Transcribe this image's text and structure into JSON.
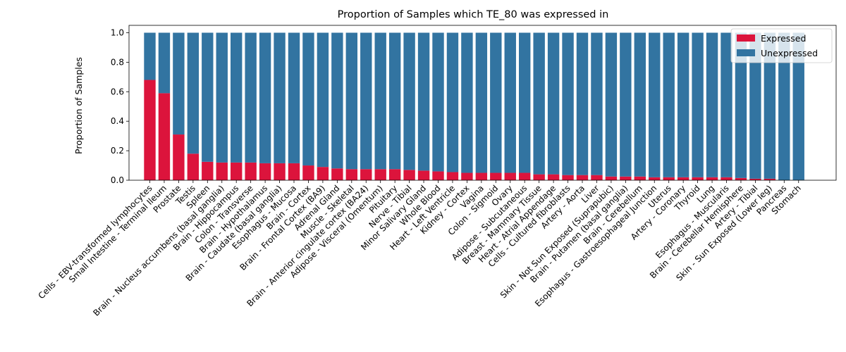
{
  "chart_data": {
    "type": "bar",
    "stacked": true,
    "title": "Proportion of Samples which TE_80 was expressed in",
    "xlabel": "",
    "ylabel": "Proportion of Samples",
    "ylim": [
      0,
      1.05
    ],
    "yticks": [
      "0.0",
      "0.2",
      "0.4",
      "0.6",
      "0.8",
      "1.0"
    ],
    "legend_position": "top-right",
    "grid": false,
    "categories": [
      "Cells - EBV-transformed lymphocytes",
      "Small Intestine - Terminal Ileum",
      "Prostate",
      "Testis",
      "Spleen",
      "Brain - Nucleus accumbens (basal ganglia)",
      "Brain - Hippocampus",
      "Colon - Transverse",
      "Brain - Hypothalamus",
      "Brain - Caudate (basal ganglia)",
      "Esophagus - Mucosa",
      "Brain - Cortex",
      "Brain - Frontal Cortex (BA9)",
      "Adrenal Gland",
      "Muscle - Skeletal",
      "Brain - Anterior cingulate cortex (BA24)",
      "Adipose - Visceral (Omentum)",
      "Pituitary",
      "Nerve - Tibial",
      "Minor Salivary Gland",
      "Whole Blood",
      "Heart - Left Ventricle",
      "Kidney - Cortex",
      "Vagina",
      "Colon - Sigmoid",
      "Ovary",
      "Adipose - Subcutaneous",
      "Breast - Mammary Tissue",
      "Heart - Atrial Appendage",
      "Cells - Cultured fibroblasts",
      "Artery - Aorta",
      "Liver",
      "Skin - Not Sun Exposed (Suprapubic)",
      "Brain - Putamen (basal ganglia)",
      "Brain - Cerebellum",
      "Esophagus - Gastroesophageal Junction",
      "Uterus",
      "Artery - Coronary",
      "Thyroid",
      "Lung",
      "Esophagus - Muscularis",
      "Brain - Cerebellar Hemisphere",
      "Artery - Tibial",
      "Skin - Sun Exposed (Lower leg)",
      "Pancreas",
      "Stomach"
    ],
    "series": [
      {
        "name": "Expressed",
        "color": "#dc143c",
        "values": [
          0.68,
          0.59,
          0.31,
          0.18,
          0.125,
          0.12,
          0.12,
          0.12,
          0.115,
          0.115,
          0.115,
          0.1,
          0.09,
          0.08,
          0.075,
          0.075,
          0.075,
          0.075,
          0.07,
          0.065,
          0.06,
          0.055,
          0.05,
          0.05,
          0.05,
          0.05,
          0.05,
          0.04,
          0.04,
          0.035,
          0.035,
          0.035,
          0.025,
          0.025,
          0.025,
          0.02,
          0.02,
          0.02,
          0.02,
          0.02,
          0.02,
          0.015,
          0.01,
          0.01,
          0.0,
          0.0
        ]
      },
      {
        "name": "Unexpressed",
        "color": "#3274a1",
        "values": [
          0.32,
          0.41,
          0.69,
          0.82,
          0.875,
          0.88,
          0.88,
          0.88,
          0.885,
          0.885,
          0.885,
          0.9,
          0.91,
          0.92,
          0.925,
          0.925,
          0.925,
          0.925,
          0.93,
          0.935,
          0.94,
          0.945,
          0.95,
          0.95,
          0.95,
          0.95,
          0.95,
          0.96,
          0.96,
          0.965,
          0.965,
          0.965,
          0.975,
          0.975,
          0.975,
          0.98,
          0.98,
          0.98,
          0.98,
          0.98,
          0.98,
          0.985,
          0.99,
          0.99,
          1.0,
          1.0
        ]
      }
    ]
  }
}
